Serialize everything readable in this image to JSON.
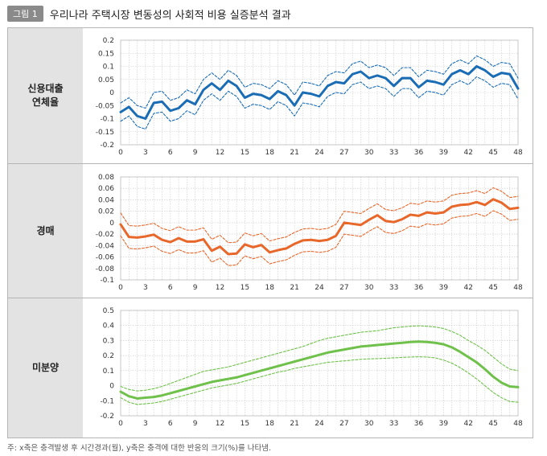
{
  "figure": {
    "badge": "그림 1",
    "title": "우리나라 주택시장 변동성의 사회적 비용 실증분석 결과",
    "footnote": "주: x축은 충격발생 후 시간경과(월), y축은 충격에 대한 반응의 크기(%)를 나타냄."
  },
  "colors": {
    "blue": "#1a6db5",
    "orange": "#e8672a",
    "green": "#6fc14b",
    "grid": "#c9c9c9",
    "label_bg": "#e3e3e3"
  },
  "chart_data": [
    {
      "type": "line",
      "panel_label": [
        "신용대출",
        "연체율"
      ],
      "xticks": [
        0,
        3,
        6,
        9,
        12,
        15,
        18,
        21,
        24,
        27,
        30,
        33,
        36,
        39,
        42,
        45,
        48
      ],
      "yticks": [
        "0.2",
        "0.15",
        "0.1",
        "0.05",
        "0",
        "-0.05",
        "-0.1",
        "-0.15",
        "-0.2"
      ],
      "ylim": [
        -0.2,
        0.2
      ],
      "xlim": [
        0,
        48
      ],
      "color": "blue",
      "series": [
        {
          "name": "response",
          "style": "solid",
          "values": [
            -0.075,
            -0.055,
            -0.09,
            -0.1,
            -0.04,
            -0.035,
            -0.07,
            -0.06,
            -0.03,
            -0.045,
            0.01,
            0.035,
            0.01,
            0.045,
            0.025,
            -0.02,
            -0.005,
            -0.01,
            -0.025,
            0.005,
            -0.01,
            -0.05,
            0,
            -0.005,
            -0.015,
            0.025,
            0.04,
            0.035,
            0.07,
            0.08,
            0.055,
            0.065,
            0.055,
            0.025,
            0.055,
            0.055,
            0.02,
            0.045,
            0.04,
            0.03,
            0.07,
            0.085,
            0.07,
            0.1,
            0.085,
            0.06,
            0.075,
            0.07,
            0.015
          ]
        },
        {
          "name": "upper",
          "style": "dashed",
          "values": [
            -0.04,
            -0.02,
            -0.05,
            -0.06,
            0.0,
            0.005,
            -0.03,
            -0.02,
            0.01,
            -0.005,
            0.05,
            0.075,
            0.05,
            0.085,
            0.065,
            0.02,
            0.035,
            0.03,
            0.015,
            0.045,
            0.03,
            -0.01,
            0.04,
            0.035,
            0.025,
            0.065,
            0.08,
            0.075,
            0.11,
            0.12,
            0.095,
            0.105,
            0.095,
            0.065,
            0.095,
            0.095,
            0.06,
            0.085,
            0.08,
            0.07,
            0.11,
            0.125,
            0.11,
            0.14,
            0.125,
            0.1,
            0.115,
            0.11,
            0.055
          ]
        },
        {
          "name": "lower",
          "style": "dashed",
          "values": [
            -0.11,
            -0.09,
            -0.13,
            -0.14,
            -0.08,
            -0.075,
            -0.11,
            -0.1,
            -0.07,
            -0.085,
            -0.03,
            -0.005,
            -0.03,
            0.005,
            -0.015,
            -0.06,
            -0.045,
            -0.05,
            -0.065,
            -0.035,
            -0.05,
            -0.09,
            -0.04,
            -0.045,
            -0.055,
            -0.015,
            0.0,
            -0.005,
            0.03,
            0.04,
            0.015,
            0.025,
            0.015,
            -0.015,
            0.015,
            0.015,
            -0.02,
            0.005,
            0.0,
            -0.01,
            0.03,
            0.045,
            0.03,
            0.06,
            0.045,
            0.02,
            0.035,
            0.03,
            -0.025
          ]
        }
      ]
    },
    {
      "type": "line",
      "panel_label": [
        "경매"
      ],
      "xticks": [
        0,
        3,
        6,
        9,
        12,
        15,
        18,
        21,
        24,
        27,
        30,
        33,
        36,
        39,
        42,
        45,
        48
      ],
      "yticks": [
        "0.08",
        "0.06",
        "0.04",
        "0.02",
        "0",
        "-0.02",
        "-0.04",
        "-0.06",
        "-0.08",
        "-0.1"
      ],
      "ylim": [
        -0.1,
        0.08
      ],
      "xlim": [
        0,
        48
      ],
      "color": "orange",
      "series": [
        {
          "name": "response",
          "style": "solid",
          "values": [
            -0.003,
            -0.025,
            -0.026,
            -0.024,
            -0.021,
            -0.03,
            -0.034,
            -0.027,
            -0.033,
            -0.033,
            -0.029,
            -0.049,
            -0.042,
            -0.055,
            -0.054,
            -0.038,
            -0.043,
            -0.039,
            -0.052,
            -0.048,
            -0.045,
            -0.037,
            -0.031,
            -0.03,
            -0.032,
            -0.03,
            -0.023,
            0.0,
            -0.002,
            -0.004,
            0.005,
            0.013,
            0.003,
            0.001,
            0.006,
            0.014,
            0.012,
            0.018,
            0.016,
            0.018,
            0.028,
            0.031,
            0.032,
            0.036,
            0.031,
            0.041,
            0.035,
            0.024,
            0.026
          ]
        },
        {
          "name": "upper",
          "style": "dashed",
          "values": [
            0.017,
            -0.005,
            -0.006,
            -0.004,
            -0.001,
            -0.01,
            -0.014,
            -0.007,
            -0.013,
            -0.013,
            -0.009,
            -0.029,
            -0.022,
            -0.035,
            -0.034,
            -0.018,
            -0.023,
            -0.019,
            -0.032,
            -0.028,
            -0.025,
            -0.017,
            -0.011,
            -0.01,
            -0.012,
            -0.01,
            -0.003,
            0.02,
            0.018,
            0.016,
            0.025,
            0.033,
            0.023,
            0.021,
            0.026,
            0.034,
            0.032,
            0.038,
            0.036,
            0.038,
            0.048,
            0.051,
            0.052,
            0.056,
            0.051,
            0.061,
            0.055,
            0.044,
            0.046
          ]
        },
        {
          "name": "lower",
          "style": "dashed",
          "values": [
            -0.023,
            -0.045,
            -0.046,
            -0.044,
            -0.041,
            -0.05,
            -0.054,
            -0.047,
            -0.053,
            -0.053,
            -0.049,
            -0.069,
            -0.062,
            -0.075,
            -0.074,
            -0.058,
            -0.063,
            -0.059,
            -0.072,
            -0.068,
            -0.065,
            -0.057,
            -0.051,
            -0.05,
            -0.052,
            -0.05,
            -0.043,
            -0.02,
            -0.022,
            -0.024,
            -0.015,
            -0.007,
            -0.017,
            -0.019,
            -0.014,
            -0.006,
            -0.008,
            -0.002,
            -0.004,
            -0.002,
            0.008,
            0.011,
            0.012,
            0.016,
            0.011,
            0.021,
            0.015,
            0.004,
            0.006
          ]
        }
      ]
    },
    {
      "type": "line",
      "panel_label": [
        "미분양"
      ],
      "xticks": [
        0,
        3,
        6,
        9,
        12,
        15,
        18,
        21,
        24,
        27,
        30,
        33,
        36,
        39,
        42,
        45,
        48
      ],
      "yticks": [
        "0.5",
        "0.4",
        "0.3",
        "0.2",
        "0.1",
        "0",
        "-0.1",
        "-0.2"
      ],
      "ylim": [
        -0.2,
        0.5
      ],
      "xlim": [
        0,
        48
      ],
      "color": "green",
      "series": [
        {
          "name": "response",
          "style": "solid",
          "values": [
            -0.04,
            -0.07,
            -0.085,
            -0.08,
            -0.075,
            -0.065,
            -0.05,
            -0.035,
            -0.02,
            -0.005,
            0.01,
            0.025,
            0.035,
            0.045,
            0.055,
            0.07,
            0.085,
            0.1,
            0.115,
            0.13,
            0.145,
            0.16,
            0.175,
            0.19,
            0.205,
            0.22,
            0.23,
            0.24,
            0.25,
            0.26,
            0.265,
            0.27,
            0.275,
            0.28,
            0.285,
            0.29,
            0.293,
            0.29,
            0.285,
            0.275,
            0.255,
            0.225,
            0.19,
            0.155,
            0.11,
            0.06,
            0.02,
            -0.005,
            -0.01
          ]
        },
        {
          "name": "upper",
          "style": "dashed",
          "values": [
            -0.005,
            -0.025,
            -0.035,
            -0.03,
            -0.02,
            -0.005,
            0.015,
            0.035,
            0.055,
            0.075,
            0.095,
            0.105,
            0.115,
            0.125,
            0.14,
            0.155,
            0.17,
            0.185,
            0.2,
            0.215,
            0.23,
            0.245,
            0.26,
            0.28,
            0.3,
            0.315,
            0.325,
            0.335,
            0.345,
            0.355,
            0.36,
            0.365,
            0.375,
            0.385,
            0.39,
            0.395,
            0.398,
            0.395,
            0.39,
            0.38,
            0.36,
            0.335,
            0.3,
            0.27,
            0.235,
            0.19,
            0.145,
            0.11,
            0.1
          ]
        },
        {
          "name": "lower",
          "style": "dashed",
          "values": [
            -0.08,
            -0.11,
            -0.125,
            -0.12,
            -0.115,
            -0.105,
            -0.09,
            -0.075,
            -0.06,
            -0.045,
            -0.03,
            -0.015,
            -0.005,
            0.005,
            0.015,
            0.03,
            0.045,
            0.06,
            0.075,
            0.09,
            0.1,
            0.115,
            0.125,
            0.135,
            0.145,
            0.155,
            0.16,
            0.165,
            0.17,
            0.175,
            0.178,
            0.18,
            0.182,
            0.185,
            0.188,
            0.19,
            0.192,
            0.19,
            0.185,
            0.17,
            0.15,
            0.12,
            0.085,
            0.045,
            0.0,
            -0.045,
            -0.08,
            -0.105,
            -0.11
          ]
        }
      ]
    }
  ]
}
